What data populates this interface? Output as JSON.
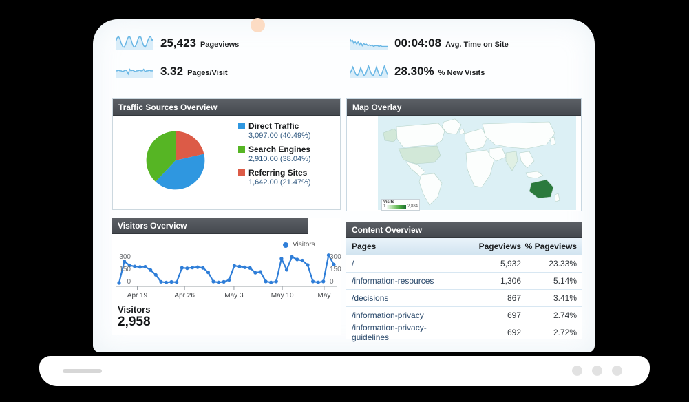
{
  "frame": {
    "base_dot_count": 3
  },
  "metrics": [
    {
      "value": "25,423",
      "label": "Pageviews",
      "spark": [
        10,
        15,
        17,
        14,
        8,
        4,
        3,
        6,
        12,
        16,
        17,
        13,
        7,
        3,
        4,
        8,
        14,
        17,
        16,
        10,
        5,
        3,
        6,
        12,
        16,
        17,
        12,
        14
      ]
    },
    {
      "value": "3.32",
      "label": "Pages/Visit",
      "spark": [
        9,
        9,
        10,
        9,
        9,
        8,
        9,
        10,
        9,
        5,
        11,
        9,
        10,
        9,
        8,
        9,
        9,
        10,
        9,
        9,
        11,
        8,
        9,
        9,
        10,
        9,
        9,
        9
      ]
    },
    {
      "value": "00:04:08",
      "label": "Avg. Time on Site",
      "spark": [
        15,
        11,
        12,
        8,
        10,
        7,
        10,
        6,
        9,
        5,
        8,
        6,
        7,
        5,
        6,
        5,
        6,
        4,
        5,
        5,
        5,
        4,
        5,
        4,
        4,
        4,
        4,
        4
      ]
    },
    {
      "value": "28.30%",
      "label": "% New Visits",
      "spark": [
        5,
        9,
        14,
        9,
        4,
        3,
        7,
        13,
        8,
        3,
        4,
        10,
        15,
        9,
        4,
        3,
        8,
        14,
        8,
        3,
        3,
        9,
        15,
        10,
        4
      ]
    }
  ],
  "panels": {
    "traffic": {
      "title": "Traffic Sources Overview"
    },
    "map": {
      "title": "Map Overlay",
      "legend": {
        "label": "Visits",
        "min": "1",
        "max": "2,884"
      },
      "colors": {
        "ocean": "#dcf0f5",
        "land": "#fcfefd",
        "border": "#b5d2c8",
        "highlight_high": "#2b7a3d",
        "highlight_med": "#d2e8d8",
        "highlight_low": "#e0f0e4"
      }
    },
    "visitors": {
      "title": "Visitors Overview",
      "legend_label": "Visitors",
      "summary_label": "Visitors",
      "summary_value": "2,958"
    },
    "content": {
      "title": "Content Overview"
    }
  },
  "chart_data": [
    {
      "type": "pie",
      "title": "Traffic Sources Overview",
      "slices": [
        {
          "label": "Direct Traffic",
          "value": 3097.0,
          "pct": 40.49,
          "color": "#2f97e0",
          "value_text": "3,097.00 (40.49%)"
        },
        {
          "label": "Search Engines",
          "value": 2910.0,
          "pct": 38.04,
          "color": "#56b524",
          "value_text": "2,910.00 (38.04%)"
        },
        {
          "label": "Referring Sites",
          "value": 1642.0,
          "pct": 21.47,
          "color": "#dc5b47",
          "value_text": "1,642.00 (21.47%)"
        }
      ],
      "draw_order": [
        2,
        0,
        1
      ],
      "legend_position": "right"
    },
    {
      "type": "line",
      "title": "Visitors Overview",
      "series_name": "Visitors",
      "color": "#2f7ed8",
      "y_ticks": [
        0,
        150,
        300
      ],
      "ylim": [
        0,
        420
      ],
      "x_ticks": [
        "Apr 19",
        "Apr 26",
        "May 3",
        "May 10",
        "May"
      ],
      "x_tick_pos_pct": [
        8.5,
        30.5,
        53.5,
        76,
        95.5
      ],
      "values": [
        8,
        262,
        215,
        202,
        196,
        199,
        160,
        103,
        22,
        14,
        20,
        17,
        186,
        181,
        189,
        194,
        186,
        133,
        24,
        15,
        21,
        44,
        210,
        201,
        192,
        184,
        128,
        138,
        25,
        15,
        25,
        295,
        163,
        315,
        285,
        272,
        220,
        25,
        15,
        25,
        335,
        225
      ]
    },
    {
      "type": "table",
      "title": "Content Overview",
      "columns": [
        "Pages",
        "Pageviews",
        "% Pageviews"
      ],
      "rows": [
        [
          "/",
          "5,932",
          "23.33%"
        ],
        [
          "/information-resources",
          "1,306",
          "5.14%"
        ],
        [
          "/decisions",
          "867",
          "3.41%"
        ],
        [
          "/information-privacy",
          "697",
          "2.74%"
        ],
        [
          "/information-privacy-guidelines",
          "692",
          "2.72%"
        ]
      ]
    },
    {
      "type": "map",
      "title": "Map Overlay",
      "highlighted_regions": [
        {
          "region": "Australia",
          "level": "high"
        },
        {
          "region": "United States",
          "level": "medium"
        },
        {
          "region": "Alaska",
          "level": "medium"
        },
        {
          "region": "India",
          "level": "low"
        }
      ],
      "legend": {
        "label": "Visits",
        "min": "1",
        "max": "2,884"
      }
    }
  ]
}
